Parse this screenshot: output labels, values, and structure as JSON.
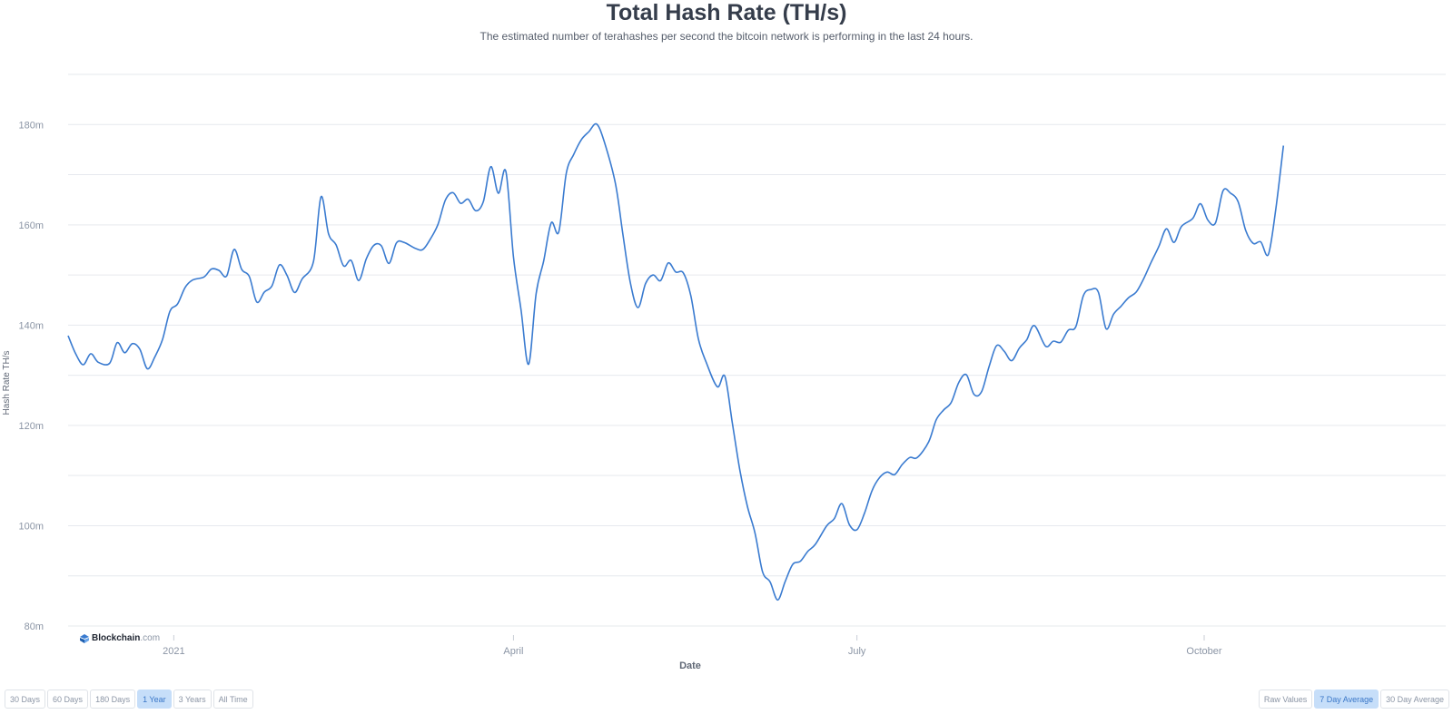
{
  "page": {
    "title": "Total Hash Rate (TH/s)",
    "subtitle": "The estimated number of terahashes per second the bitcoin network is performing in the last 24 hours.",
    "logo_bold": "Blockchain",
    "logo_dim": ".com"
  },
  "range_buttons": [
    {
      "label": "30 Days",
      "active": false
    },
    {
      "label": "60 Days",
      "active": false
    },
    {
      "label": "180 Days",
      "active": false
    },
    {
      "label": "1 Year",
      "active": true
    },
    {
      "label": "3 Years",
      "active": false
    },
    {
      "label": "All Time",
      "active": false
    }
  ],
  "avg_buttons": [
    {
      "label": "Raw Values",
      "active": false
    },
    {
      "label": "7 Day Average",
      "active": true
    },
    {
      "label": "30 Day Average",
      "active": false
    }
  ],
  "colors": {
    "line": "#3a7bd0",
    "grid": "#e6e9ee",
    "axis_text": "#8b95a5",
    "active_btn": "#c6def9"
  },
  "chart_data": {
    "type": "line",
    "title": "Total Hash Rate (TH/s)",
    "xlabel": "Date",
    "ylabel": "Hash Rate TH/s",
    "x_ticks": [
      {
        "date": "2021-01-01",
        "label": "2021"
      },
      {
        "date": "2021-04-01",
        "label": "April"
      },
      {
        "date": "2021-07-01",
        "label": "July"
      },
      {
        "date": "2021-10-01",
        "label": "October"
      }
    ],
    "y_ticks": [
      {
        "value": 80,
        "label": "80m"
      },
      {
        "value": 100,
        "label": "100m"
      },
      {
        "value": 120,
        "label": "120m"
      },
      {
        "value": 140,
        "label": "140m"
      },
      {
        "value": 160,
        "label": "160m"
      },
      {
        "value": 180,
        "label": "180m"
      }
    ],
    "ylim": [
      80,
      190
    ],
    "xlim": [
      "2020-12-04",
      "2021-12-04"
    ],
    "grid": true,
    "series": [
      {
        "name": "",
        "color": "#3a7bd0",
        "points": [
          [
            "2020-12-04",
            137.9
          ],
          [
            "2020-12-06",
            134.3
          ],
          [
            "2020-12-08",
            132.1
          ],
          [
            "2020-12-10",
            134.3
          ],
          [
            "2020-12-12",
            132.6
          ],
          [
            "2020-12-15",
            132.4
          ],
          [
            "2020-12-17",
            136.5
          ],
          [
            "2020-12-19",
            134.5
          ],
          [
            "2020-12-21",
            136.3
          ],
          [
            "2020-12-23",
            135.2
          ],
          [
            "2020-12-25",
            131.3
          ],
          [
            "2020-12-27",
            133.7
          ],
          [
            "2020-12-29",
            137.1
          ],
          [
            "2020-12-31",
            142.8
          ],
          [
            "2021-01-02",
            144.2
          ],
          [
            "2021-01-04",
            147.5
          ],
          [
            "2021-01-06",
            149.0
          ],
          [
            "2021-01-09",
            149.6
          ],
          [
            "2021-01-11",
            151.2
          ],
          [
            "2021-01-13",
            150.9
          ],
          [
            "2021-01-15",
            149.8
          ],
          [
            "2021-01-17",
            155.1
          ],
          [
            "2021-01-19",
            151.1
          ],
          [
            "2021-01-21",
            149.7
          ],
          [
            "2021-01-23",
            144.6
          ],
          [
            "2021-01-25",
            146.6
          ],
          [
            "2021-01-27",
            147.8
          ],
          [
            "2021-01-29",
            152.0
          ],
          [
            "2021-01-31",
            149.9
          ],
          [
            "2021-02-02",
            146.5
          ],
          [
            "2021-02-04",
            149.2
          ],
          [
            "2021-02-07",
            152.7
          ],
          [
            "2021-02-09",
            165.6
          ],
          [
            "2021-02-11",
            158.2
          ],
          [
            "2021-02-13",
            156.0
          ],
          [
            "2021-02-15",
            151.8
          ],
          [
            "2021-02-17",
            152.9
          ],
          [
            "2021-02-19",
            148.9
          ],
          [
            "2021-02-21",
            153.2
          ],
          [
            "2021-02-23",
            155.9
          ],
          [
            "2021-02-25",
            155.8
          ],
          [
            "2021-02-27",
            152.3
          ],
          [
            "2021-03-01",
            156.4
          ],
          [
            "2021-03-03",
            156.5
          ],
          [
            "2021-03-06",
            155.3
          ],
          [
            "2021-03-08",
            155.1
          ],
          [
            "2021-03-10",
            157.2
          ],
          [
            "2021-03-12",
            160.1
          ],
          [
            "2021-03-14",
            165.0
          ],
          [
            "2021-03-16",
            166.4
          ],
          [
            "2021-03-18",
            164.3
          ],
          [
            "2021-03-20",
            165.1
          ],
          [
            "2021-03-22",
            162.8
          ],
          [
            "2021-03-24",
            164.6
          ],
          [
            "2021-03-26",
            171.6
          ],
          [
            "2021-03-28",
            166.3
          ],
          [
            "2021-03-30",
            170.6
          ],
          [
            "2021-04-01",
            153.6
          ],
          [
            "2021-04-03",
            143.1
          ],
          [
            "2021-04-05",
            132.2
          ],
          [
            "2021-04-07",
            146.3
          ],
          [
            "2021-04-09",
            152.8
          ],
          [
            "2021-04-11",
            160.4
          ],
          [
            "2021-04-13",
            158.6
          ],
          [
            "2021-04-15",
            170.3
          ],
          [
            "2021-04-17",
            174.1
          ],
          [
            "2021-04-19",
            177.0
          ],
          [
            "2021-04-21",
            178.6
          ],
          [
            "2021-04-23",
            180.1
          ],
          [
            "2021-04-25",
            176.7
          ],
          [
            "2021-04-28",
            168.3
          ],
          [
            "2021-04-30",
            158.0
          ],
          [
            "2021-05-02",
            148.3
          ],
          [
            "2021-05-04",
            143.5
          ],
          [
            "2021-05-06",
            148.3
          ],
          [
            "2021-05-08",
            150.0
          ],
          [
            "2021-05-10",
            148.9
          ],
          [
            "2021-05-12",
            152.4
          ],
          [
            "2021-05-14",
            150.6
          ],
          [
            "2021-05-16",
            150.4
          ],
          [
            "2021-05-18",
            145.8
          ],
          [
            "2021-05-20",
            137.2
          ],
          [
            "2021-05-22",
            132.7
          ],
          [
            "2021-05-25",
            127.7
          ],
          [
            "2021-05-27",
            129.8
          ],
          [
            "2021-05-29",
            120.4
          ],
          [
            "2021-05-31",
            111.0
          ],
          [
            "2021-06-02",
            103.8
          ],
          [
            "2021-06-04",
            98.5
          ],
          [
            "2021-06-06",
            90.8
          ],
          [
            "2021-06-08",
            88.8
          ],
          [
            "2021-06-10",
            85.2
          ],
          [
            "2021-06-12",
            88.9
          ],
          [
            "2021-06-14",
            92.3
          ],
          [
            "2021-06-16",
            92.9
          ],
          [
            "2021-06-18",
            94.9
          ],
          [
            "2021-06-20",
            96.3
          ],
          [
            "2021-06-23",
            100.0
          ],
          [
            "2021-06-25",
            101.4
          ],
          [
            "2021-06-27",
            104.4
          ],
          [
            "2021-06-29",
            100.2
          ],
          [
            "2021-07-01",
            99.2
          ],
          [
            "2021-07-03",
            102.5
          ],
          [
            "2021-07-05",
            107.0
          ],
          [
            "2021-07-07",
            109.6
          ],
          [
            "2021-07-09",
            110.7
          ],
          [
            "2021-07-11",
            110.2
          ],
          [
            "2021-07-13",
            112.2
          ],
          [
            "2021-07-15",
            113.6
          ],
          [
            "2021-07-17",
            113.6
          ],
          [
            "2021-07-20",
            116.7
          ],
          [
            "2021-07-22",
            121.1
          ],
          [
            "2021-07-24",
            123.1
          ],
          [
            "2021-07-26",
            124.6
          ],
          [
            "2021-07-28",
            128.6
          ],
          [
            "2021-07-30",
            130.1
          ],
          [
            "2021-08-01",
            126.2
          ],
          [
            "2021-08-03",
            126.7
          ],
          [
            "2021-08-05",
            131.7
          ],
          [
            "2021-08-07",
            135.9
          ],
          [
            "2021-08-09",
            134.8
          ],
          [
            "2021-08-11",
            132.9
          ],
          [
            "2021-08-13",
            135.4
          ],
          [
            "2021-08-15",
            137.1
          ],
          [
            "2021-08-17",
            139.9
          ],
          [
            "2021-08-20",
            135.8
          ],
          [
            "2021-08-22",
            136.8
          ],
          [
            "2021-08-24",
            136.6
          ],
          [
            "2021-08-26",
            139.0
          ],
          [
            "2021-08-28",
            139.7
          ],
          [
            "2021-08-30",
            145.9
          ],
          [
            "2021-09-01",
            147.1
          ],
          [
            "2021-09-03",
            146.5
          ],
          [
            "2021-09-05",
            139.3
          ],
          [
            "2021-09-07",
            142.2
          ],
          [
            "2021-09-09",
            143.8
          ],
          [
            "2021-09-11",
            145.5
          ],
          [
            "2021-09-13",
            146.6
          ],
          [
            "2021-09-15",
            149.3
          ],
          [
            "2021-09-17",
            152.6
          ],
          [
            "2021-09-19",
            155.7
          ],
          [
            "2021-09-21",
            159.2
          ],
          [
            "2021-09-23",
            156.5
          ],
          [
            "2021-09-25",
            159.7
          ],
          [
            "2021-09-28",
            161.3
          ],
          [
            "2021-09-30",
            164.2
          ],
          [
            "2021-10-02",
            160.9
          ],
          [
            "2021-10-04",
            160.4
          ],
          [
            "2021-10-06",
            166.8
          ],
          [
            "2021-10-08",
            166.3
          ],
          [
            "2021-10-10",
            164.6
          ],
          [
            "2021-10-12",
            158.9
          ],
          [
            "2021-10-14",
            156.3
          ],
          [
            "2021-10-16",
            156.6
          ],
          [
            "2021-10-18",
            154.1
          ],
          [
            "2021-10-20",
            163.3
          ],
          [
            "2021-10-22",
            175.8
          ]
        ]
      }
    ]
  }
}
